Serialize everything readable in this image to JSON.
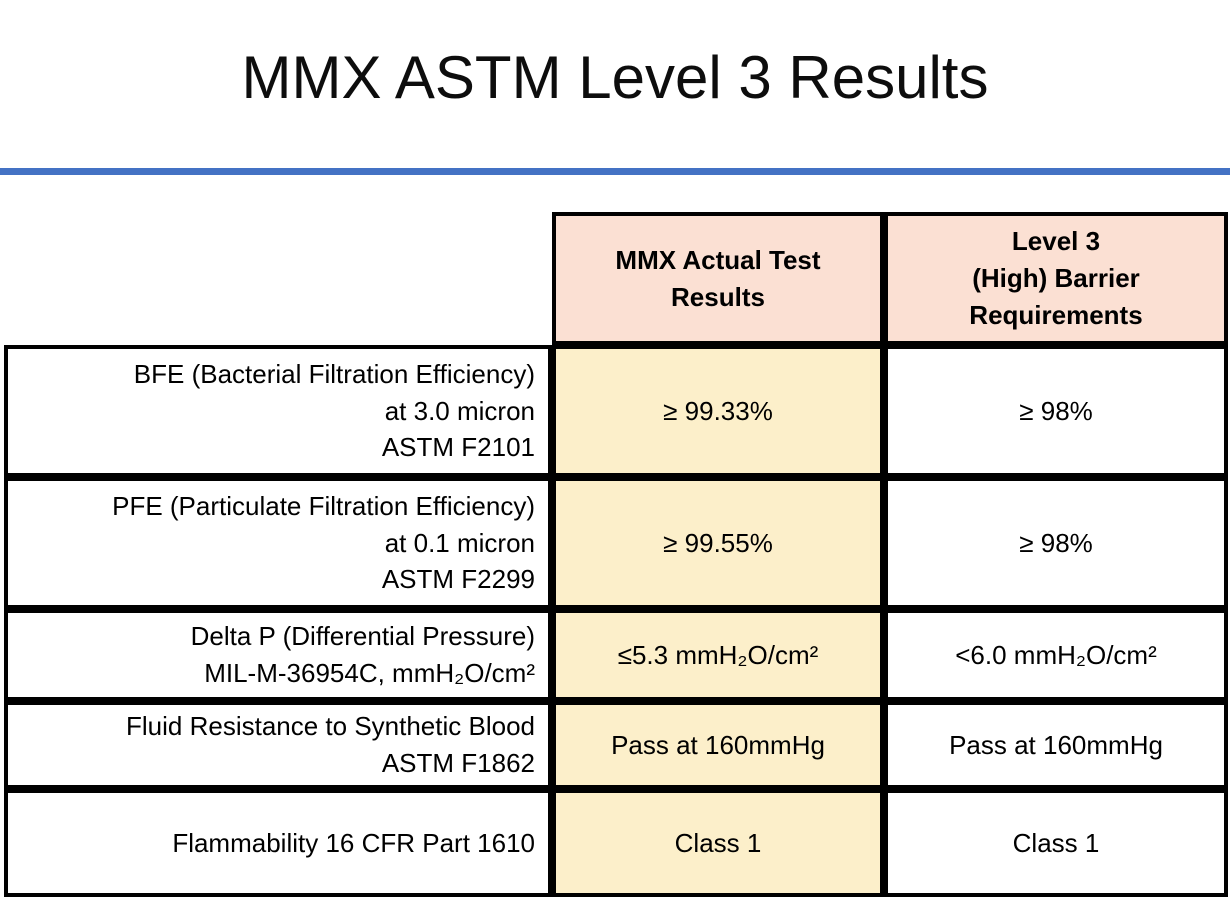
{
  "title": "MMX ASTM Level 3 Results",
  "colors": {
    "accent": "#4472c4",
    "header_bg": "#fbe0d3",
    "actual_bg": "#fcefca",
    "border": "#000000"
  },
  "table": {
    "headers": {
      "actual": "MMX Actual Test\nResults",
      "level3": "Level 3\n(High) Barrier\nRequirements"
    },
    "rows": [
      {
        "label": "BFE (Bacterial Filtration Efficiency)\nat 3.0 micron\nASTM F2101",
        "actual": "≥ 99.33%",
        "requirement": "≥ 98%"
      },
      {
        "label": "PFE (Particulate Filtration Efficiency)\nat 0.1 micron\nASTM F2299",
        "actual": "≥ 99.55%",
        "requirement": "≥ 98%"
      },
      {
        "label": "Delta P (Differential Pressure)\nMIL-M-36954C, mmH₂O/cm²",
        "actual": "≤5.3 mmH₂O/cm²",
        "requirement": "<6.0 mmH₂O/cm²"
      },
      {
        "label": "Fluid Resistance to Synthetic Blood\nASTM F1862",
        "actual": "Pass at 160mmHg",
        "requirement": "Pass at 160mmHg"
      },
      {
        "label": "Flammability 16 CFR Part 1610",
        "actual": "Class 1",
        "requirement": "Class 1"
      }
    ]
  }
}
